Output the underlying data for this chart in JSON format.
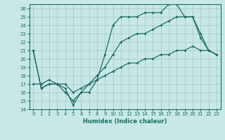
{
  "xlabel": "Humidex (Indice chaleur)",
  "bg_color": "#c8e8e8",
  "grid_color": "#b0cece",
  "line_color": "#1a6e60",
  "xlim": [
    -0.5,
    23.5
  ],
  "ylim": [
    14,
    26.5
  ],
  "xticks": [
    0,
    1,
    2,
    3,
    4,
    5,
    6,
    7,
    8,
    9,
    10,
    11,
    12,
    13,
    14,
    15,
    16,
    17,
    18,
    19,
    20,
    21,
    22,
    23
  ],
  "yticks": [
    14,
    15,
    16,
    17,
    18,
    19,
    20,
    21,
    22,
    23,
    24,
    25,
    26
  ],
  "line1_x": [
    0,
    1,
    2,
    3,
    4,
    5,
    6,
    7,
    8,
    9,
    10,
    11,
    12,
    13,
    14,
    15,
    16,
    17,
    18,
    19,
    20,
    21,
    22,
    23
  ],
  "line1_y": [
    21,
    16.5,
    17,
    17,
    16.5,
    14.5,
    16,
    16,
    17.5,
    20.5,
    24,
    25,
    25,
    25,
    25.5,
    25.5,
    25.5,
    26.5,
    26.5,
    25,
    25,
    23,
    21,
    20.5
  ],
  "line2_x": [
    0,
    1,
    2,
    3,
    4,
    5,
    6,
    7,
    8,
    9,
    10,
    11,
    12,
    13,
    14,
    15,
    16,
    17,
    18,
    19,
    20,
    21,
    22,
    23
  ],
  "line2_y": [
    21,
    16.5,
    17,
    17,
    16,
    15,
    16,
    17,
    18,
    19,
    20.5,
    22,
    22.5,
    23,
    23,
    23.5,
    24,
    24.5,
    25,
    25,
    25,
    22.5,
    21,
    20.5
  ],
  "line3_x": [
    0,
    1,
    2,
    3,
    4,
    5,
    6,
    7,
    8,
    9,
    10,
    11,
    12,
    13,
    14,
    15,
    16,
    17,
    18,
    19,
    20,
    21,
    22,
    23
  ],
  "line3_y": [
    17,
    17,
    17.5,
    17,
    17,
    16,
    16.5,
    17,
    17.5,
    18,
    18.5,
    19,
    19.5,
    19.5,
    20,
    20,
    20.5,
    20.5,
    21,
    21,
    21.5,
    21,
    21,
    20.5
  ]
}
